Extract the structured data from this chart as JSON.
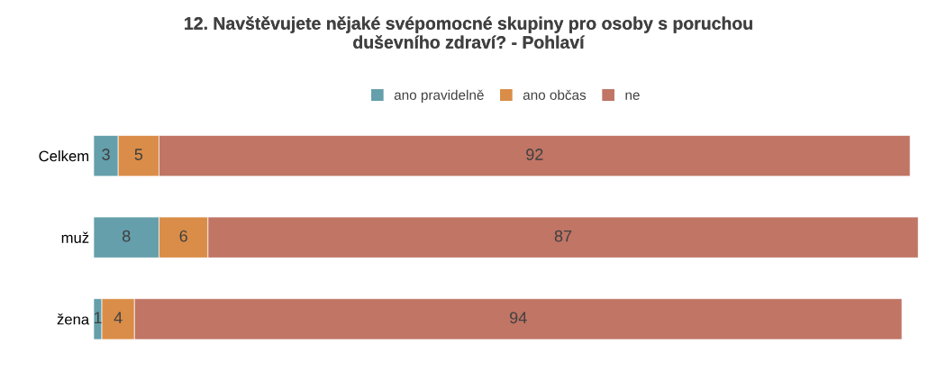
{
  "chart_data": {
    "type": "bar",
    "orientation": "horizontal",
    "stacked": true,
    "title": "12. Navštěvujete nějaké svépomocné skupiny pro osoby s poruchou\nduševního zdraví? - Pohlaví",
    "categories": [
      "Celkem",
      "muž",
      "žena"
    ],
    "series": [
      {
        "name": "ano pravidelně",
        "color": "#649fab",
        "values": [
          3,
          8,
          1
        ]
      },
      {
        "name": "ano občas",
        "color": "#da8d48",
        "values": [
          5,
          6,
          4
        ]
      },
      {
        "name": "ne",
        "color": "#c07565",
        "values": [
          92,
          87,
          94
        ]
      }
    ],
    "data_labels": true,
    "legend": "top",
    "grid": false,
    "tick_labels": "y"
  }
}
